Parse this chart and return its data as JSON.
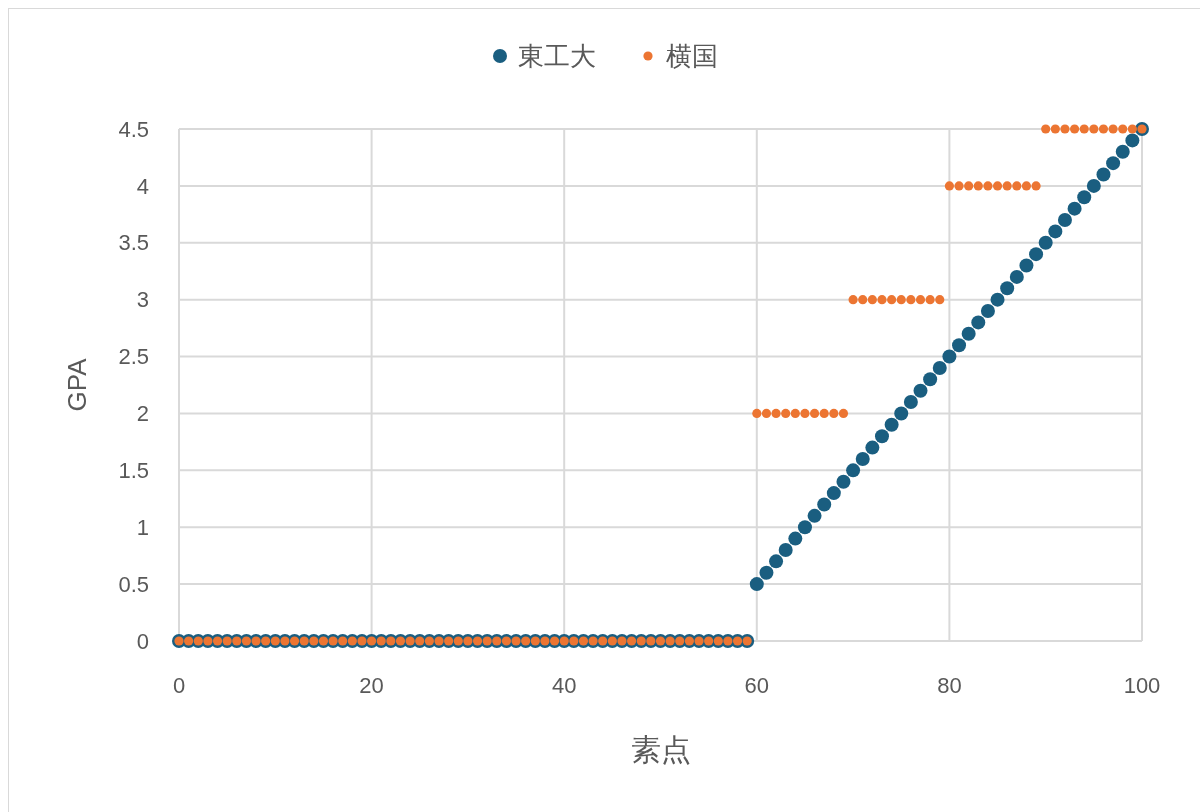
{
  "chart_data": {
    "type": "scatter",
    "xlabel": "素点",
    "ylabel": "GPA",
    "x": [
      0,
      1,
      2,
      3,
      4,
      5,
      6,
      7,
      8,
      9,
      10,
      11,
      12,
      13,
      14,
      15,
      16,
      17,
      18,
      19,
      20,
      21,
      22,
      23,
      24,
      25,
      26,
      27,
      28,
      29,
      30,
      31,
      32,
      33,
      34,
      35,
      36,
      37,
      38,
      39,
      40,
      41,
      42,
      43,
      44,
      45,
      46,
      47,
      48,
      49,
      50,
      51,
      52,
      53,
      54,
      55,
      56,
      57,
      58,
      59,
      60,
      61,
      62,
      63,
      64,
      65,
      66,
      67,
      68,
      69,
      70,
      71,
      72,
      73,
      74,
      75,
      76,
      77,
      78,
      79,
      80,
      81,
      82,
      83,
      84,
      85,
      86,
      87,
      88,
      89,
      90,
      91,
      92,
      93,
      94,
      95,
      96,
      97,
      98,
      99,
      100
    ],
    "series": [
      {
        "name": "東工大",
        "color": "#1a5e80",
        "values": [
          0,
          0,
          0,
          0,
          0,
          0,
          0,
          0,
          0,
          0,
          0,
          0,
          0,
          0,
          0,
          0,
          0,
          0,
          0,
          0,
          0,
          0,
          0,
          0,
          0,
          0,
          0,
          0,
          0,
          0,
          0,
          0,
          0,
          0,
          0,
          0,
          0,
          0,
          0,
          0,
          0,
          0,
          0,
          0,
          0,
          0,
          0,
          0,
          0,
          0,
          0,
          0,
          0,
          0,
          0,
          0,
          0,
          0,
          0,
          0,
          0.5,
          0.6,
          0.7,
          0.8,
          0.9,
          1,
          1.1,
          1.2,
          1.3,
          1.4,
          1.5,
          1.6,
          1.7,
          1.8,
          1.9,
          2,
          2.1,
          2.2,
          2.3,
          2.4,
          2.5,
          2.6,
          2.7,
          2.8,
          2.9,
          3,
          3.1,
          3.2,
          3.3,
          3.4,
          3.5,
          3.6,
          3.7,
          3.8,
          3.9,
          4,
          4.1,
          4.2,
          4.3,
          4.4,
          4.5
        ]
      },
      {
        "name": "横国",
        "color": "#ec7532",
        "values": [
          0,
          0,
          0,
          0,
          0,
          0,
          0,
          0,
          0,
          0,
          0,
          0,
          0,
          0,
          0,
          0,
          0,
          0,
          0,
          0,
          0,
          0,
          0,
          0,
          0,
          0,
          0,
          0,
          0,
          0,
          0,
          0,
          0,
          0,
          0,
          0,
          0,
          0,
          0,
          0,
          0,
          0,
          0,
          0,
          0,
          0,
          0,
          0,
          0,
          0,
          0,
          0,
          0,
          0,
          0,
          0,
          0,
          0,
          0,
          0,
          2,
          2,
          2,
          2,
          2,
          2,
          2,
          2,
          2,
          2,
          3,
          3,
          3,
          3,
          3,
          3,
          3,
          3,
          3,
          3,
          4,
          4,
          4,
          4,
          4,
          4,
          4,
          4,
          4,
          4,
          4.5,
          4.5,
          4.5,
          4.5,
          4.5,
          4.5,
          4.5,
          4.5,
          4.5,
          4.5,
          4.5
        ]
      }
    ],
    "xlim": [
      0,
      100
    ],
    "xticks": [
      0,
      20,
      40,
      60,
      80,
      100
    ],
    "ylim": [
      0,
      4.5
    ],
    "yticks": [
      0,
      0.5,
      1,
      1.5,
      2,
      2.5,
      3,
      3.5,
      4,
      4.5
    ],
    "grid": true,
    "legend": "top",
    "marker": "circle"
  }
}
